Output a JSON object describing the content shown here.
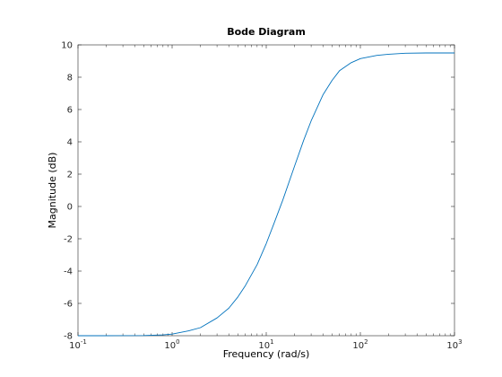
{
  "chart_data": {
    "type": "line",
    "title": "Bode Diagram",
    "xlabel": "Frequency  (rad/s)",
    "ylabel": "Magnitude (dB)",
    "xscale": "log",
    "xlim": [
      0.1,
      1000
    ],
    "ylim": [
      -8,
      10
    ],
    "xticks": [
      {
        "value": 0.1,
        "base": "10",
        "exp": "-1"
      },
      {
        "value": 1,
        "base": "10",
        "exp": "0"
      },
      {
        "value": 10,
        "base": "10",
        "exp": "1"
      },
      {
        "value": 100,
        "base": "10",
        "exp": "2"
      },
      {
        "value": 1000,
        "base": "10",
        "exp": "3"
      }
    ],
    "yticks": [
      -8,
      -6,
      -4,
      -2,
      0,
      2,
      4,
      6,
      8,
      10
    ],
    "grid": false,
    "line_color": "#0072bd",
    "series": [
      {
        "x": [
          0.1,
          0.2,
          0.5,
          0.8,
          1,
          1.5,
          2,
          3,
          4,
          5,
          6,
          8,
          10,
          12,
          15,
          20,
          25,
          30,
          40,
          50,
          60,
          80,
          100,
          150,
          200,
          300,
          500,
          1000
        ],
        "y": [
          -8.0,
          -8.0,
          -7.99,
          -7.95,
          -7.9,
          -7.7,
          -7.5,
          -6.9,
          -6.3,
          -5.6,
          -4.9,
          -3.6,
          -2.3,
          -1.1,
          0.4,
          2.5,
          4.1,
          5.3,
          6.9,
          7.8,
          8.4,
          8.9,
          9.15,
          9.35,
          9.42,
          9.48,
          9.5,
          9.5
        ]
      }
    ]
  }
}
